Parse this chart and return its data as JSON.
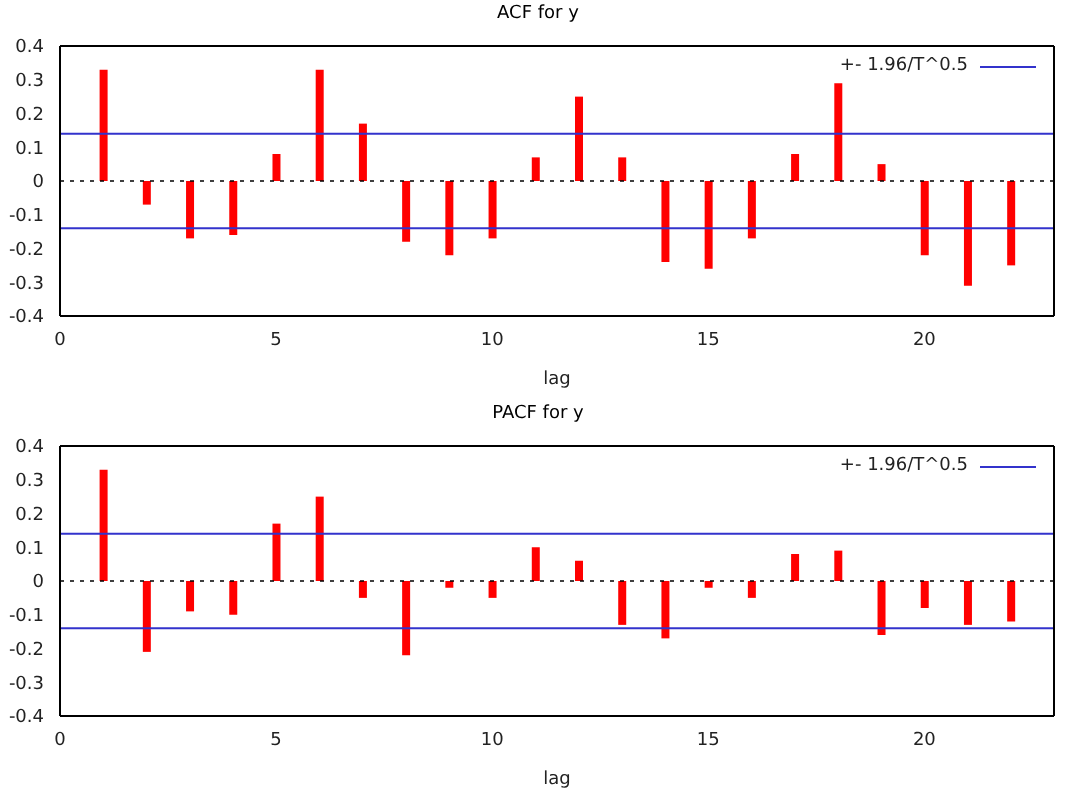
{
  "chart_data": [
    {
      "type": "bar",
      "title": "ACF for y",
      "xlabel": "lag",
      "x": [
        1,
        2,
        3,
        4,
        5,
        6,
        7,
        8,
        9,
        10,
        11,
        12,
        13,
        14,
        15,
        16,
        17,
        18,
        19,
        20,
        21,
        22
      ],
      "values": [
        0.33,
        -0.07,
        -0.17,
        -0.16,
        0.08,
        0.33,
        0.17,
        -0.18,
        -0.22,
        -0.17,
        0.07,
        0.25,
        0.07,
        -0.24,
        -0.26,
        -0.17,
        0.08,
        0.29,
        0.05,
        -0.22,
        -0.31,
        -0.25
      ],
      "color": "#ff0000",
      "xlim": [
        0,
        23
      ],
      "xticks": [
        0,
        5,
        10,
        15,
        20
      ],
      "ylim": [
        -0.4,
        0.4
      ],
      "yticks": [
        -0.4,
        -0.3,
        -0.2,
        -0.1,
        0,
        0.1,
        0.2,
        0.3,
        0.4
      ],
      "ref_lines": [
        {
          "axis": "y",
          "value": 0.14,
          "label": "+- 1.96/T^0.5",
          "color": "#3333cc"
        },
        {
          "axis": "y",
          "value": -0.14,
          "color": "#3333cc"
        },
        {
          "axis": "y",
          "value": 0,
          "color": "#000000",
          "line_style": "dotted"
        }
      ],
      "legend": "top right",
      "grid": false
    },
    {
      "type": "bar",
      "title": "PACF for y",
      "xlabel": "lag",
      "x": [
        1,
        2,
        3,
        4,
        5,
        6,
        7,
        8,
        9,
        10,
        11,
        12,
        13,
        14,
        15,
        16,
        17,
        18,
        19,
        20,
        21,
        22
      ],
      "values": [
        0.33,
        -0.21,
        -0.09,
        -0.1,
        0.17,
        0.25,
        -0.05,
        -0.22,
        -0.02,
        -0.05,
        0.1,
        0.06,
        -0.13,
        -0.17,
        -0.02,
        -0.05,
        0.08,
        0.09,
        -0.16,
        -0.08,
        -0.13,
        -0.12
      ],
      "color": "#ff0000",
      "xlim": [
        0,
        23
      ],
      "xticks": [
        0,
        5,
        10,
        15,
        20
      ],
      "ylim": [
        -0.4,
        0.4
      ],
      "yticks": [
        -0.4,
        -0.3,
        -0.2,
        -0.1,
        0,
        0.1,
        0.2,
        0.3,
        0.4
      ],
      "ref_lines": [
        {
          "axis": "y",
          "value": 0.14,
          "label": "+- 1.96/T^0.5",
          "color": "#3333cc"
        },
        {
          "axis": "y",
          "value": -0.14,
          "color": "#3333cc"
        },
        {
          "axis": "y",
          "value": 0,
          "color": "#000000",
          "line_style": "dotted"
        }
      ],
      "legend": "top right",
      "grid": false
    }
  ]
}
